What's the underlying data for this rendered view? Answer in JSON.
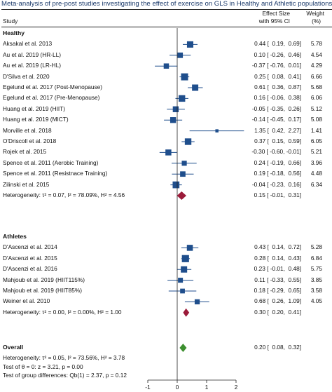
{
  "title": "Meta-analysis of pre-post studies investigating the effect of exercise on GLS in Healthy and Athletic populations",
  "header": {
    "study": "Study",
    "es_line1": "Effect Size",
    "es_line2": "with 95% CI",
    "wt_line1": "Weight",
    "wt_line2": "(%)"
  },
  "colors": {
    "marker": "#1f4e8c",
    "diamond_healthy": "#9b1b3a",
    "diamond_athletes": "#9b1b3a",
    "diamond_overall": "#3d8f2f",
    "title": "#1b3a6b"
  },
  "chart_data": {
    "type": "forest",
    "xlim": [
      -1,
      2
    ],
    "xticks": [
      "-1",
      "0",
      "1",
      "2"
    ],
    "groups": [
      {
        "name": "Healthy",
        "studies": [
          {
            "label": "Aksakal et al. 2013",
            "es": 0.44,
            "lo": 0.19,
            "hi": 0.69,
            "text": "0.44 [  0.19,  0.69]",
            "weight": "5.78"
          },
          {
            "label": "Au et al. 2019 (HR-LL)",
            "es": 0.1,
            "lo": -0.26,
            "hi": 0.46,
            "text": "0.10 [ -0.26,  0.46]",
            "weight": "4.54"
          },
          {
            "label": "Au et al. 2019 (LR-HL)",
            "es": -0.37,
            "lo": -0.76,
            "hi": 0.01,
            "text": "-0.37 [ -0.76,  0.01]",
            "weight": "4.29"
          },
          {
            "label": "D'Silva et al. 2020",
            "es": 0.25,
            "lo": 0.08,
            "hi": 0.41,
            "text": "0.25 [  0.08,  0.41]",
            "weight": "6.66"
          },
          {
            "label": "Egelund et al. 2017 (Post-Menopause)",
            "es": 0.61,
            "lo": 0.36,
            "hi": 0.87,
            "text": "0.61 [  0.36,  0.87]",
            "weight": "5.68"
          },
          {
            "label": "Egelund et al. 2017 (Pre-Menopause)",
            "es": 0.16,
            "lo": -0.06,
            "hi": 0.38,
            "text": "0.16 [ -0.06,  0.38]",
            "weight": "6.06"
          },
          {
            "label": "Huang et al. 2019 (HIIT)",
            "es": -0.05,
            "lo": -0.35,
            "hi": 0.26,
            "text": "-0.05 [ -0.35,  0.26]",
            "weight": "5.12"
          },
          {
            "label": "Huang et al. 2019 (MICT)",
            "es": -0.14,
            "lo": -0.45,
            "hi": 0.17,
            "text": "-0.14 [ -0.45,  0.17]",
            "weight": "5.08"
          },
          {
            "label": "Morville et al. 2018",
            "es": 1.35,
            "lo": 0.42,
            "hi": 2.27,
            "text": "1.35 [  0.42,  2.27]",
            "weight": "1.41"
          },
          {
            "label": "O'Driscoll et al. 2018",
            "es": 0.37,
            "lo": 0.15,
            "hi": 0.59,
            "text": "0.37 [  0.15,  0.59]",
            "weight": "6.05"
          },
          {
            "label": "Rojek et al. 2015",
            "es": -0.3,
            "lo": -0.6,
            "hi": -0.01,
            "text": "-0.30 [ -0.60, -0.01]",
            "weight": "5.21"
          },
          {
            "label": "Spence et al. 2011 (Aerobic Training)",
            "es": 0.24,
            "lo": -0.19,
            "hi": 0.66,
            "text": "0.24 [ -0.19,  0.66]",
            "weight": "3.96"
          },
          {
            "label": "Spence et al. 2011 (Resistnace Training)",
            "es": 0.19,
            "lo": -0.18,
            "hi": 0.56,
            "text": "0.19 [ -0.18,  0.56]",
            "weight": "4.48"
          },
          {
            "label": "Zilinski et al. 2015",
            "es": -0.04,
            "lo": -0.23,
            "hi": 0.16,
            "text": "-0.04 [ -0.23,  0.16]",
            "weight": "6.34"
          }
        ],
        "pooled": {
          "label": "Heterogeneity: τ² = 0.07, I² = 78.09%, H² = 4.56",
          "es": 0.15,
          "lo": -0.01,
          "hi": 0.31,
          "text": "0.15 [ -0.01,  0.31]"
        }
      },
      {
        "name": "Athletes",
        "studies": [
          {
            "label": "D'Ascenzi et al. 2014",
            "es": 0.43,
            "lo": 0.14,
            "hi": 0.72,
            "text": "0.43 [  0.14,  0.72]",
            "weight": "5.28"
          },
          {
            "label": "D'Ascenzi et al. 2015",
            "es": 0.28,
            "lo": 0.14,
            "hi": 0.43,
            "text": "0.28 [  0.14,  0.43]",
            "weight": "6.84"
          },
          {
            "label": "D'Ascenzi et al. 2016",
            "es": 0.23,
            "lo": -0.01,
            "hi": 0.48,
            "text": "0.23 [ -0.01,  0.48]",
            "weight": "5.75"
          },
          {
            "label": "Mahjoub et al. 2019 (HIIT115%)",
            "es": 0.11,
            "lo": -0.33,
            "hi": 0.55,
            "text": "0.11 [ -0.33,  0.55]",
            "weight": "3.85"
          },
          {
            "label": "Mahjoub et al. 2019 (HIIT85%)",
            "es": 0.18,
            "lo": -0.29,
            "hi": 0.65,
            "text": "0.18 [ -0.29,  0.65]",
            "weight": "3.58"
          },
          {
            "label": "Weiner et al. 2010",
            "es": 0.68,
            "lo": 0.26,
            "hi": 1.09,
            "text": "0.68 [  0.26,  1.09]",
            "weight": "4.05"
          }
        ],
        "pooled": {
          "label": "Heterogeneity: τ² = 0.00, I² = 0.00%, H² = 1.00",
          "es": 0.3,
          "lo": 0.2,
          "hi": 0.41,
          "text": "0.30 [  0.20,  0.41]"
        }
      }
    ],
    "overall": {
      "label": "Overall",
      "es": 0.2,
      "lo": 0.08,
      "hi": 0.32,
      "text": "0.20 [  0.08,  0.32]"
    },
    "footer": [
      "Heterogeneity: τ² = 0.05, I² = 73.56%, H² = 3.78",
      "Test of θ = 0: z = 3.21, p = 0.00",
      "Test of group differences: Qb(1) = 2.37, p = 0.12"
    ]
  }
}
